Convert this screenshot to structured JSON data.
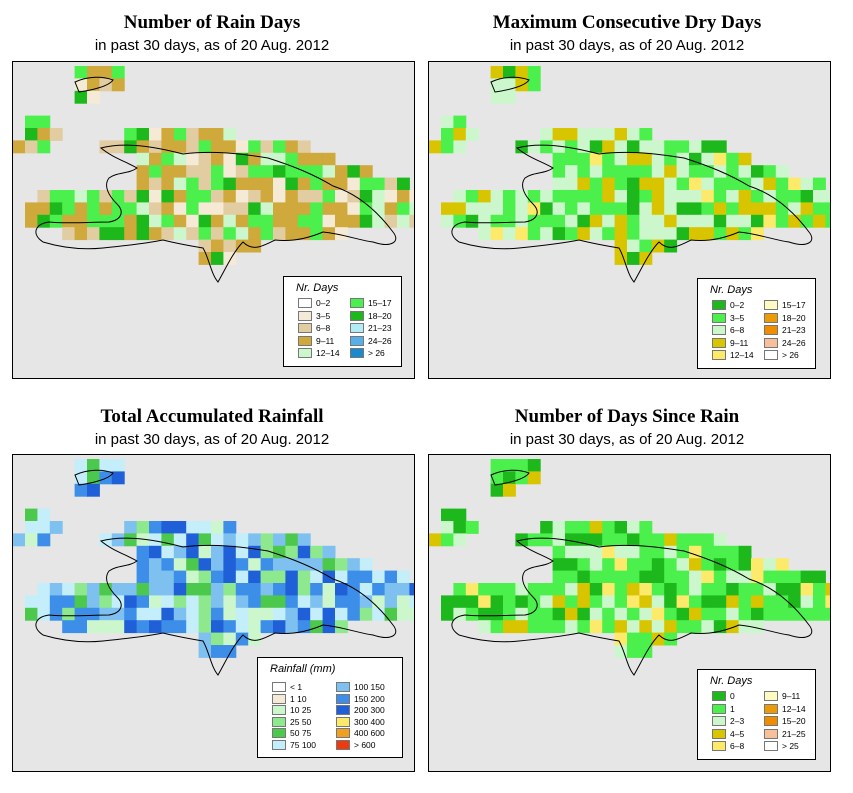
{
  "panels": [
    {
      "title": "Number of Rain Days",
      "subtitle": "in past 30 days, as of  20 Aug. 2012",
      "legend": {
        "title": "Nr. Days",
        "items": [
          {
            "label": "0–2",
            "color": "#ffffff"
          },
          {
            "label": "3–5",
            "color": "#f5ead6"
          },
          {
            "label": "6–8",
            "color": "#e2cda2"
          },
          {
            "label": "9–11",
            "color": "#cfa93b"
          },
          {
            "label": "12–14",
            "color": "#ccf7cc"
          },
          {
            "label": "15–17",
            "color": "#4cf04c"
          },
          {
            "label": "18–20",
            "color": "#1cb81c"
          },
          {
            "label": "21–23",
            "color": "#b3ecf5"
          },
          {
            "label": "24–26",
            "color": "#56b0e8"
          },
          {
            "label": "> 26",
            "color": "#1a8ad0"
          }
        ]
      }
    },
    {
      "title": "Maximum Consecutive Dry Days",
      "subtitle": "in past 30 days, as of  20 Aug. 2012",
      "legend": {
        "title": "Nr. Days",
        "items": [
          {
            "label": "0–2",
            "color": "#1cb81c"
          },
          {
            "label": "3–5",
            "color": "#4cf04c"
          },
          {
            "label": "6–8",
            "color": "#ccf7cc"
          },
          {
            "label": "9–11",
            "color": "#d9c400"
          },
          {
            "label": "12–14",
            "color": "#fde96a"
          },
          {
            "label": "15–17",
            "color": "#fdfac4"
          },
          {
            "label": "18–20",
            "color": "#eb9a08"
          },
          {
            "label": "21–23",
            "color": "#f08c00"
          },
          {
            "label": "24–26",
            "color": "#f7c09a"
          },
          {
            "label": "> 26",
            "color": "#ffffff"
          }
        ]
      }
    },
    {
      "title": "Total Accumulated Rainfall",
      "subtitle": "in past 30 days, as of  20 Aug. 2012",
      "legend": {
        "title": "Rainfall (mm)",
        "items": [
          {
            "label": "< 1",
            "color": "#ffffff"
          },
          {
            "label": "1   10",
            "color": "#f5ead6"
          },
          {
            "label": "10   25",
            "color": "#ccf7cc"
          },
          {
            "label": "25   50",
            "color": "#8ee88e"
          },
          {
            "label": "50   75",
            "color": "#4cc84c"
          },
          {
            "label": "75  100",
            "color": "#c3eefa"
          },
          {
            "label": "100  150",
            "color": "#7ec0f0"
          },
          {
            "label": "150  200",
            "color": "#3d8ee8"
          },
          {
            "label": "200  300",
            "color": "#1f60d8"
          },
          {
            "label": "300  400",
            "color": "#fde96a"
          },
          {
            "label": "400  600",
            "color": "#f0a020"
          },
          {
            "label": "> 600",
            "color": "#ee3a10"
          }
        ]
      }
    },
    {
      "title": "Number of Days Since Rain",
      "subtitle": "in past 30 days, as of  20 Aug. 2012",
      "legend": {
        "title": "Nr. Days",
        "items": [
          {
            "label": "0",
            "color": "#1cb81c"
          },
          {
            "label": "1",
            "color": "#4cf04c"
          },
          {
            "label": "2–3",
            "color": "#ccf7cc"
          },
          {
            "label": "4–5",
            "color": "#d9c400"
          },
          {
            "label": "6–8",
            "color": "#fde96a"
          },
          {
            "label": "9–11",
            "color": "#fdfac4"
          },
          {
            "label": "12–14",
            "color": "#eb9a08"
          },
          {
            "label": "15–20",
            "color": "#f08c00"
          },
          {
            "label": "21–25",
            "color": "#f7c09a"
          },
          {
            "label": "> 25",
            "color": "#ffffff"
          }
        ]
      }
    }
  ]
}
